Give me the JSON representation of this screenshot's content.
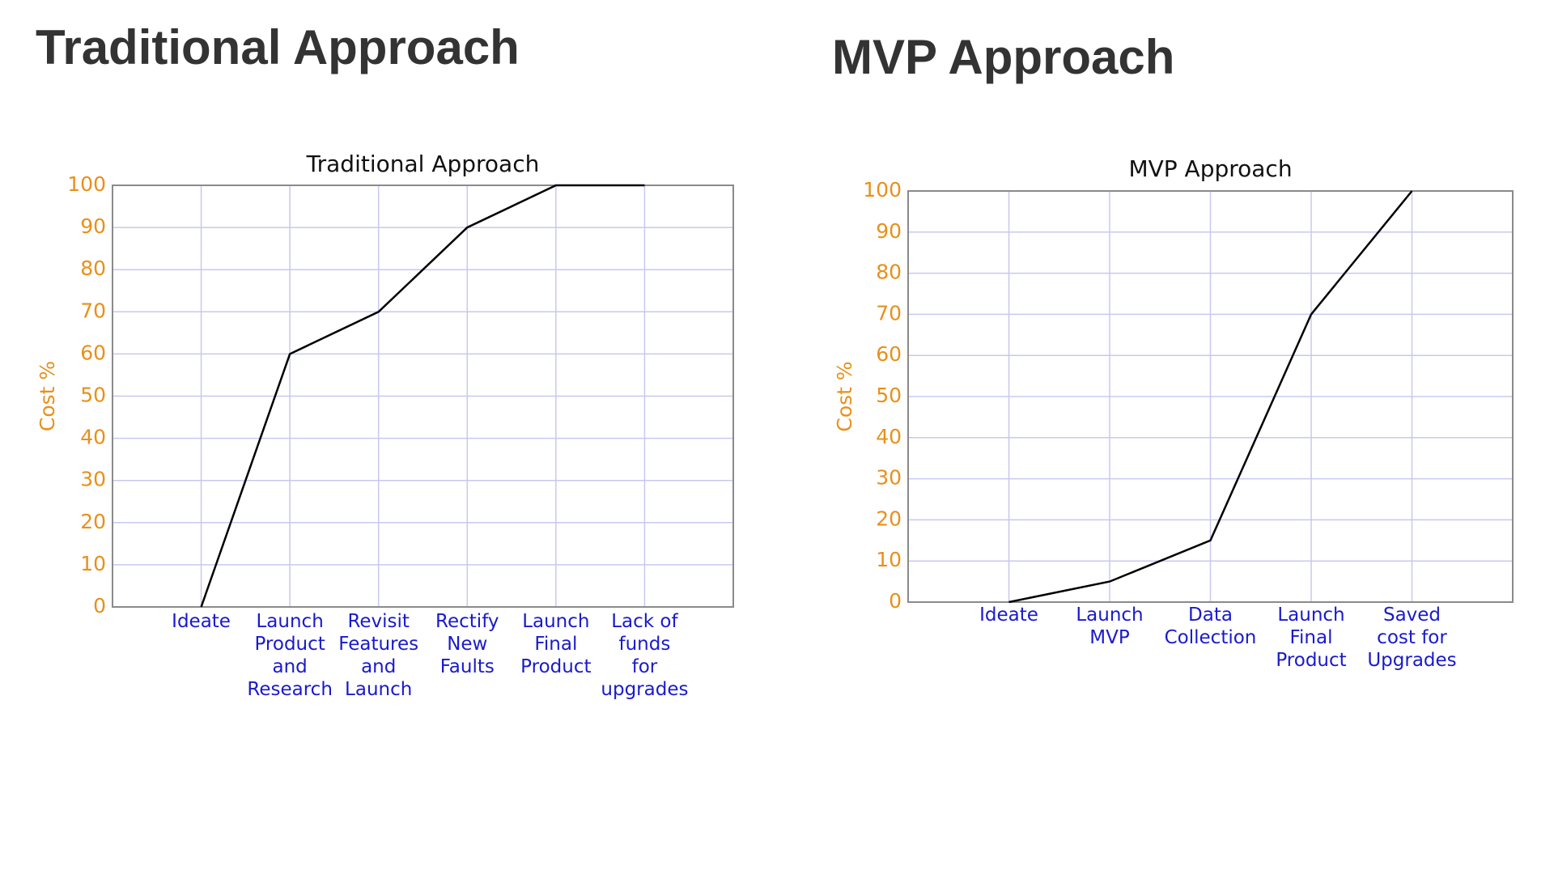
{
  "headings": {
    "left": "Traditional Approach",
    "right": "MVP Approach"
  },
  "chart_data": [
    {
      "type": "line",
      "title": "Traditional Approach",
      "y_label": "Cost %",
      "categories": [
        "Ideate",
        "Launch\nProduct\nand\nResearch",
        "Revisit\nFeatures\nand\nLaunch",
        "Rectify\nNew\nFaults",
        "Launch\nFinal\nProduct",
        "Lack of\nfunds\nfor\nupgrades"
      ],
      "values": [
        0,
        60,
        70,
        90,
        100,
        100
      ],
      "color": "#000000",
      "ylim": [
        0,
        100
      ],
      "yticks": [
        0,
        10,
        20,
        30,
        40,
        50,
        60,
        70,
        80,
        90,
        100
      ],
      "grid": true,
      "tick_color": "#e8901a",
      "category_color": "#1a1acc"
    },
    {
      "type": "line",
      "title": "MVP Approach",
      "y_label": "Cost %",
      "categories": [
        "Ideate",
        "Launch\nMVP",
        "Data\nCollection",
        "Launch\nFinal\nProduct",
        "Saved\ncost for\nUpgrades"
      ],
      "values": [
        0,
        5,
        15,
        70,
        100
      ],
      "color": "#000000",
      "ylim": [
        0,
        100
      ],
      "yticks": [
        0,
        10,
        20,
        30,
        40,
        50,
        60,
        70,
        80,
        90,
        100
      ],
      "grid": true,
      "tick_color": "#e8901a",
      "category_color": "#1a1acc"
    }
  ]
}
